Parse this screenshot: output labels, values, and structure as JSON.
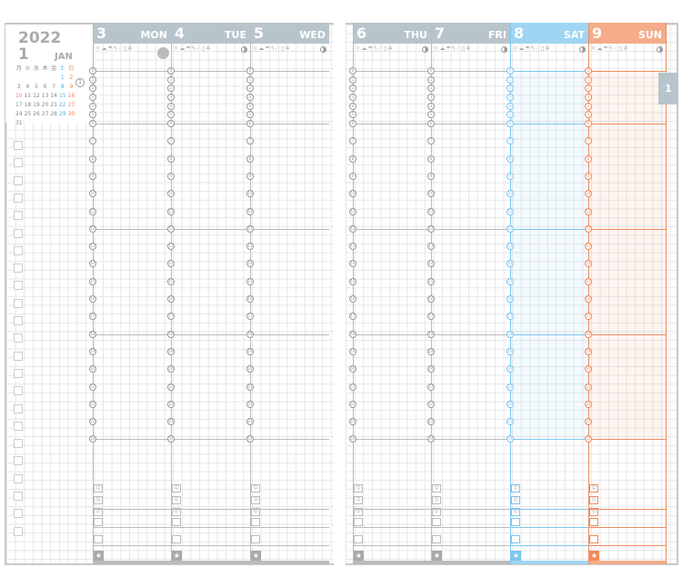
{
  "year": "2022",
  "month_num": "1",
  "month_name": "JAN",
  "mini_calendar": {
    "weekdays": [
      "月",
      "火",
      "水",
      "木",
      "金",
      "土",
      "日"
    ],
    "days": [
      "",
      "",
      "",
      "",
      "",
      "1",
      "2",
      "3",
      "4",
      "5",
      "6",
      "7",
      "8",
      "9",
      "10",
      "11",
      "12",
      "13",
      "14",
      "15",
      "16",
      "17",
      "18",
      "19",
      "20",
      "21",
      "22",
      "23",
      "24",
      "25",
      "26",
      "27",
      "28",
      "29",
      "30",
      "31"
    ],
    "current_week_marker": "1"
  },
  "weather_icons": "☼☁☂ϟ☄▯✲",
  "days": [
    {
      "num": "3",
      "name": "MON",
      "color": "#b8c4cb",
      "line": "#bbbbbb",
      "tint": ""
    },
    {
      "num": "4",
      "name": "TUE",
      "color": "#b8c4cb",
      "line": "#bbbbbb",
      "tint": ""
    },
    {
      "num": "5",
      "name": "WED",
      "color": "#b8c4cb",
      "line": "#bbbbbb",
      "tint": ""
    },
    {
      "num": "6",
      "name": "THU",
      "color": "#b8c4cb",
      "line": "#bbbbbb",
      "tint": ""
    },
    {
      "num": "7",
      "name": "FRI",
      "color": "#b8c4cb",
      "line": "#bbbbbb",
      "tint": ""
    },
    {
      "num": "8",
      "name": "SAT",
      "color": "#9fd5f3",
      "line": "#7cc6ee",
      "tint": "rgba(159,213,243,0.12)"
    },
    {
      "num": "9",
      "name": "SUN",
      "color": "#f4ac8a",
      "line": "#ef8a5d",
      "tint": "rgba(244,172,138,0.12)"
    }
  ],
  "hours": [
    "0",
    "1",
    "2",
    "3",
    "4",
    "5",
    "6",
    "7",
    "8",
    "9",
    "10",
    "11",
    "12",
    "13",
    "14",
    "15",
    "16",
    "17",
    "18",
    "19",
    "20",
    "21",
    "22",
    "23",
    "24"
  ],
  "mood_icons": [
    "☺",
    "☺",
    "☹"
  ],
  "star": "★",
  "week_tab": "1"
}
